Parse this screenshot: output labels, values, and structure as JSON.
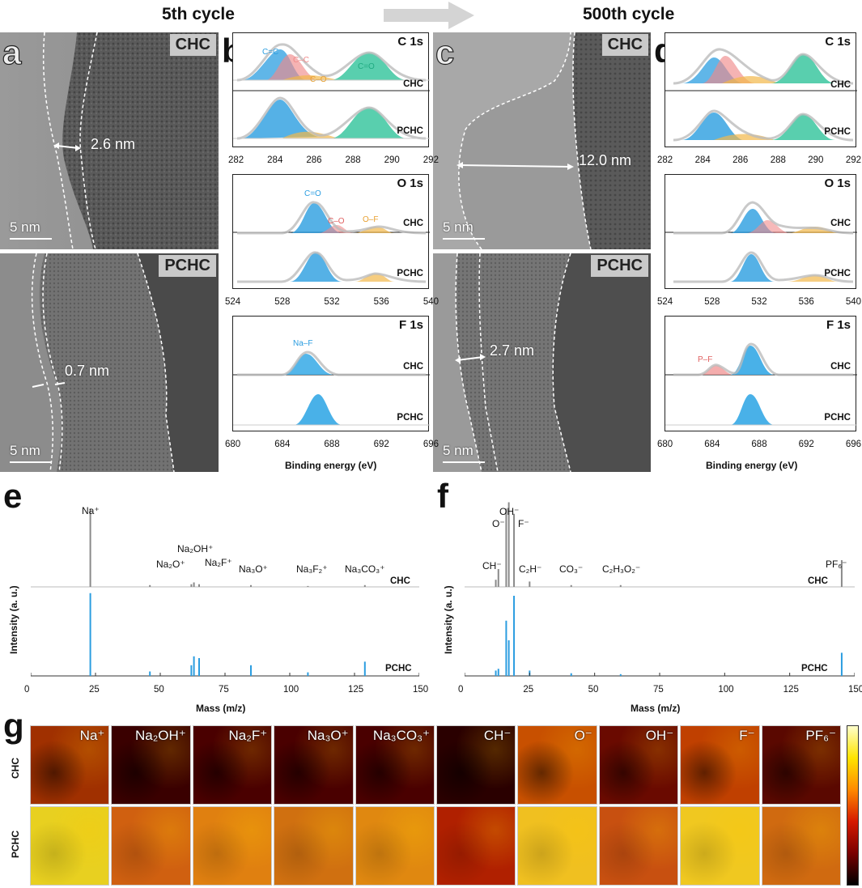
{
  "headers": {
    "left": "5th cycle",
    "right": "500th cycle"
  },
  "panel_labels": {
    "a": "a",
    "b": "b",
    "c": "c",
    "d": "d",
    "e": "e",
    "f": "f",
    "g": "g"
  },
  "tem": {
    "a_top": {
      "tag": "CHC",
      "thickness": "2.6 nm",
      "scale": "5 nm"
    },
    "a_bot": {
      "tag": "PCHC",
      "thickness": "0.7 nm",
      "scale": "5 nm"
    },
    "c_top": {
      "tag": "CHC",
      "thickness": "12.0 nm",
      "scale": "5 nm"
    },
    "c_bot": {
      "tag": "PCHC",
      "thickness": "2.7 nm",
      "scale": "5 nm"
    }
  },
  "xps": {
    "xlabel": "Binding energy (eV)",
    "sample_top": "CHC",
    "sample_bot": "PCHC",
    "C": {
      "element": "C 1s",
      "ticks": [
        "282",
        "284",
        "286",
        "288",
        "290",
        "292"
      ],
      "peaks": [
        "C=C",
        "C–C",
        "C–O",
        "C=O"
      ]
    },
    "O": {
      "element": "O 1s",
      "ticks": [
        "524",
        "528",
        "532",
        "536",
        "540"
      ],
      "peaks": [
        "C=O",
        "C–O",
        "O–F"
      ]
    },
    "F": {
      "element": "F 1s",
      "ticks": [
        "680",
        "684",
        "688",
        "692",
        "696"
      ],
      "peaks": [
        "Na–F"
      ],
      "peaks_500": [
        "P–F"
      ]
    },
    "colors": {
      "cc": "#2b9de0",
      "c_c": "#f08a8a",
      "co": "#f2b84a",
      "cdo": "#2fc39a",
      "naf": "#35a9e6",
      "grey": "#bbbbbb"
    }
  },
  "chart_data": [
    {
      "type": "bar",
      "panel": "e",
      "title": "",
      "xlabel": "Mass (m/z)",
      "ylabel": "Intensity (a. u.)",
      "xlim": [
        0,
        150
      ],
      "xticks": [
        "0",
        "25",
        "50",
        "75",
        "100",
        "125",
        "150"
      ],
      "series": [
        {
          "name": "CHC",
          "peaks": [
            {
              "x": 23,
              "y": 0.88
            },
            {
              "x": 46,
              "y": 0.02
            },
            {
              "x": 62,
              "y": 0.03
            },
            {
              "x": 63,
              "y": 0.05
            },
            {
              "x": 65,
              "y": 0.03
            },
            {
              "x": 85,
              "y": 0.02
            },
            {
              "x": 107,
              "y": 0.01
            },
            {
              "x": 129,
              "y": 0.02
            }
          ]
        },
        {
          "name": "PCHC",
          "peaks": [
            {
              "x": 23,
              "y": 0.93
            },
            {
              "x": 46,
              "y": 0.05
            },
            {
              "x": 62,
              "y": 0.12
            },
            {
              "x": 63,
              "y": 0.22
            },
            {
              "x": 65,
              "y": 0.2
            },
            {
              "x": 85,
              "y": 0.12
            },
            {
              "x": 107,
              "y": 0.04
            },
            {
              "x": 129,
              "y": 0.16
            }
          ]
        }
      ],
      "annotations": [
        "Na⁺",
        "Na₂OH⁺",
        "Na₂O⁺",
        "Na₂F⁺",
        "Na₃O⁺",
        "Na₃F₂⁺",
        "Na₃CO₃⁺"
      ]
    },
    {
      "type": "bar",
      "panel": "f",
      "title": "",
      "xlabel": "Mass (m/z)",
      "ylabel": "Intensity (a. u.)",
      "xlim": [
        0,
        150
      ],
      "xticks": [
        "0",
        "25",
        "50",
        "75",
        "100",
        "125",
        "150"
      ],
      "series": [
        {
          "name": "CHC",
          "peaks": [
            {
              "x": 12,
              "y": 0.08
            },
            {
              "x": 13,
              "y": 0.2
            },
            {
              "x": 16,
              "y": 0.88
            },
            {
              "x": 17,
              "y": 0.95
            },
            {
              "x": 19,
              "y": 0.82
            },
            {
              "x": 25,
              "y": 0.06
            },
            {
              "x": 41,
              "y": 0.02
            },
            {
              "x": 60,
              "y": 0.02
            },
            {
              "x": 145,
              "y": 0.3
            }
          ]
        },
        {
          "name": "PCHC",
          "peaks": [
            {
              "x": 12,
              "y": 0.06
            },
            {
              "x": 13,
              "y": 0.08
            },
            {
              "x": 16,
              "y": 0.62
            },
            {
              "x": 17,
              "y": 0.4
            },
            {
              "x": 19,
              "y": 0.9
            },
            {
              "x": 25,
              "y": 0.06
            },
            {
              "x": 41,
              "y": 0.03
            },
            {
              "x": 60,
              "y": 0.02
            },
            {
              "x": 145,
              "y": 0.26
            }
          ]
        }
      ],
      "annotations": [
        "O⁻",
        "OH⁻",
        "F⁻",
        "CH⁻",
        "C₂H⁻",
        "CO₃⁻",
        "C₂H₃O₂⁻",
        "PF₆⁻"
      ]
    }
  ],
  "mapping": {
    "rows": [
      "CHC",
      "PCHC"
    ],
    "tiles": [
      "Na⁺",
      "Na₂OH⁺",
      "Na₂F⁺",
      "Na₃O⁺",
      "Na₃CO₃⁺",
      "CH⁻",
      "O⁻",
      "OH⁻",
      "F⁻",
      "PF₆⁻"
    ],
    "colormap": [
      "#000000",
      "#7a0000",
      "#d61a00",
      "#ff8a00",
      "#ffe400",
      "#ffffcc"
    ]
  }
}
